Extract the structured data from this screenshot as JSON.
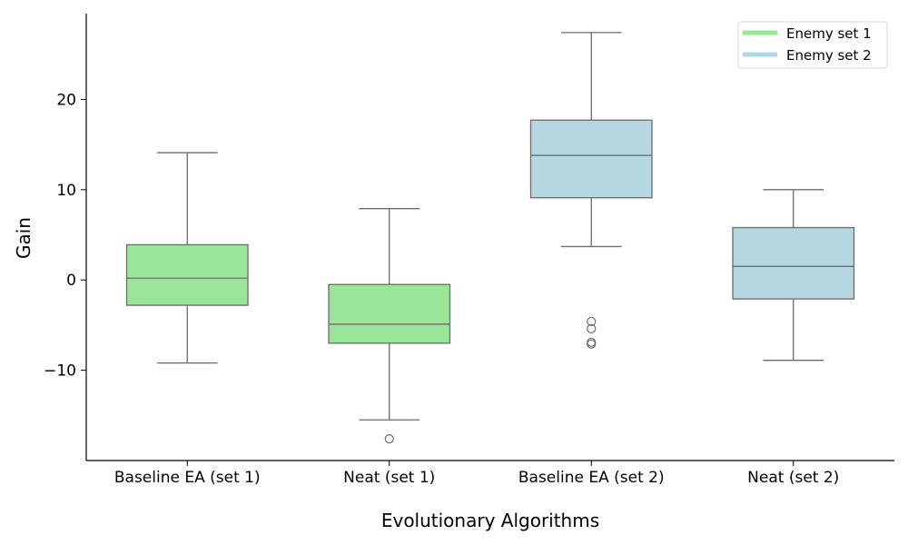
{
  "chart_data": {
    "type": "box",
    "xlabel": "Evolutionary Algorithms",
    "ylabel": "Gain",
    "ylim": [
      -20,
      29.5
    ],
    "yticks": [
      -10,
      0,
      10,
      20
    ],
    "ytick_labels": [
      "−10",
      "0",
      "10",
      "20"
    ],
    "grid": false,
    "legend_position": "top-right",
    "categories": [
      "Baseline EA (set 1)",
      "Neat (set 1)",
      "Baseline EA (set 2)",
      "Neat (set 2)"
    ],
    "series": [
      {
        "name": "Enemy set 1",
        "color": "#90ee90"
      },
      {
        "name": "Enemy set 2",
        "color": "#add8e6"
      }
    ],
    "boxes": [
      {
        "category": "Baseline EA (set 1)",
        "series": "Enemy set 1",
        "color": "#9be59b",
        "whislo": -9.2,
        "q1": -2.8,
        "med": 0.2,
        "q3": 3.9,
        "whishi": 14.1,
        "fliers": []
      },
      {
        "category": "Neat (set 1)",
        "series": "Enemy set 1",
        "color": "#9be59b",
        "whislo": -15.5,
        "q1": -7.0,
        "med": -4.9,
        "q3": -0.5,
        "whishi": 7.9,
        "fliers": [
          -17.6
        ]
      },
      {
        "category": "Baseline EA (set 2)",
        "series": "Enemy set 2",
        "color": "#b4d7e2",
        "whislo": 3.7,
        "q1": 9.1,
        "med": 13.8,
        "q3": 17.7,
        "whishi": 27.4,
        "fliers": [
          -4.6,
          -5.4,
          -6.9,
          -7.1
        ]
      },
      {
        "category": "Neat (set 2)",
        "series": "Enemy set 2",
        "color": "#b4d7e2",
        "whislo": -8.9,
        "q1": -2.1,
        "med": 1.5,
        "q3": 5.8,
        "whishi": 10.0,
        "fliers": []
      }
    ]
  }
}
